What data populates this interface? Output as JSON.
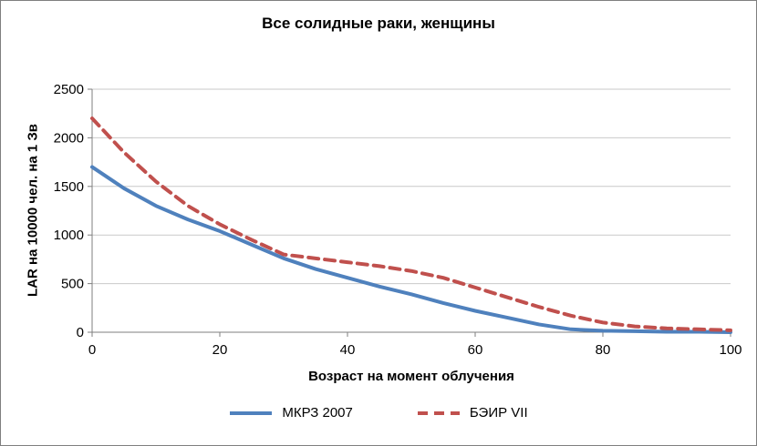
{
  "chart_data": {
    "type": "line",
    "title": "Все солидные раки, женщины",
    "xlabel": "Возраст на момент облучения",
    "ylabel": "LAR на 10000 чел. на 1 Зв",
    "xlim": [
      0,
      100
    ],
    "ylim": [
      0,
      2500
    ],
    "x_ticks": [
      0,
      20,
      40,
      60,
      80,
      100
    ],
    "y_ticks": [
      0,
      500,
      1000,
      1500,
      2000,
      2500
    ],
    "grid": "horizontal",
    "legend_position": "bottom",
    "x": [
      0,
      5,
      10,
      15,
      20,
      25,
      30,
      35,
      40,
      45,
      50,
      55,
      60,
      65,
      70,
      75,
      80,
      85,
      90,
      95,
      100
    ],
    "series": [
      {
        "name": "МКРЗ 2007",
        "color": "#4F81BD",
        "style": "solid",
        "values": [
          1700,
          1480,
          1300,
          1160,
          1040,
          900,
          760,
          650,
          560,
          470,
          390,
          300,
          220,
          150,
          80,
          30,
          15,
          10,
          5,
          5,
          0
        ]
      },
      {
        "name": "БЭИР VII",
        "color": "#C0504D",
        "style": "dashed",
        "values": [
          2200,
          1850,
          1550,
          1300,
          1110,
          950,
          800,
          760,
          720,
          680,
          630,
          560,
          460,
          360,
          260,
          170,
          100,
          60,
          40,
          30,
          20
        ]
      }
    ],
    "colors": {
      "grid": "#c9c9c9",
      "axis": "#7f7f7f",
      "border": "#7f7f7f",
      "text": "#000000"
    }
  }
}
